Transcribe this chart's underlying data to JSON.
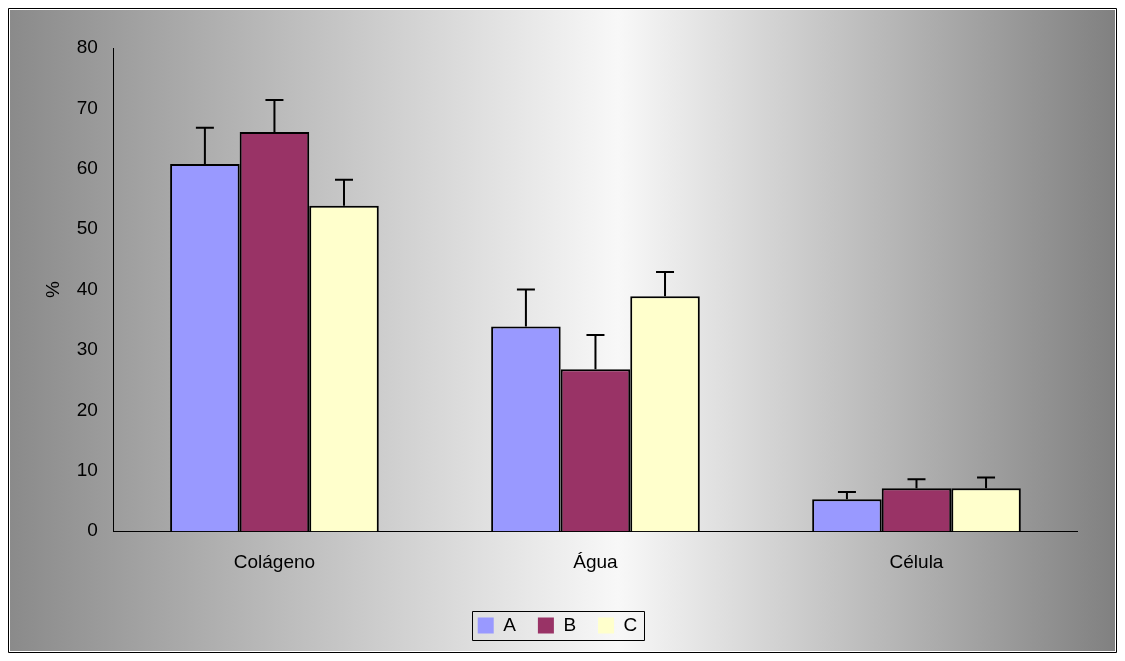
{
  "chart_data": {
    "type": "bar",
    "ylabel": "%",
    "categories": [
      "Colágeno",
      "Água",
      "Célula"
    ],
    "series": [
      {
        "name": "A",
        "color": "#9999ff",
        "values": [
          60.8,
          33.9,
          5.3
        ],
        "errors": [
          [
            60.8,
            66.8
          ],
          [
            33.9,
            40.0
          ],
          [
            5.3,
            6.5
          ]
        ]
      },
      {
        "name": "B",
        "color": "#993366",
        "values": [
          66.1,
          26.8,
          7.1
        ],
        "errors": [
          [
            66.1,
            71.4
          ],
          [
            26.8,
            32.5
          ],
          [
            7.1,
            8.6
          ]
        ]
      },
      {
        "name": "C",
        "color": "#ffffcc",
        "values": [
          53.9,
          38.9,
          7.1
        ],
        "errors": [
          [
            53.9,
            58.2
          ],
          [
            38.9,
            42.9
          ],
          [
            7.1,
            8.9
          ]
        ]
      }
    ],
    "ylim": [
      0,
      80
    ],
    "yticks": [
      0,
      10,
      20,
      30,
      40,
      50,
      60,
      70,
      80
    ],
    "grid": false,
    "legend": "bottom"
  }
}
